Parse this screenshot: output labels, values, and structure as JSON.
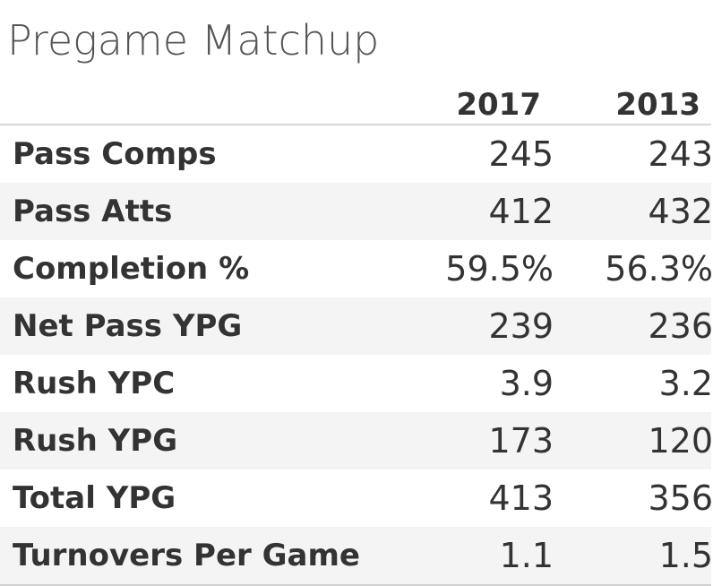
{
  "title": "Pregame Matchup",
  "chart_data": {
    "type": "table",
    "title": "Pregame Matchup",
    "columns": [
      "2017",
      "2013"
    ],
    "rows": [
      {
        "label": "Pass Comps",
        "values": [
          "245",
          "243"
        ]
      },
      {
        "label": "Pass Atts",
        "values": [
          "412",
          "432"
        ]
      },
      {
        "label": "Completion %",
        "values": [
          "59.5%",
          "56.3%"
        ]
      },
      {
        "label": "Net Pass YPG",
        "values": [
          "239",
          "236"
        ]
      },
      {
        "label": "Rush YPC",
        "values": [
          "3.9",
          "3.2"
        ]
      },
      {
        "label": "Rush YPG",
        "values": [
          "173",
          "120"
        ]
      },
      {
        "label": "Total YPG",
        "values": [
          "413",
          "356"
        ]
      },
      {
        "label": "Turnovers Per Game",
        "values": [
          "1.1",
          "1.5"
        ]
      }
    ]
  },
  "colors": {
    "text": "#333333",
    "title": "#555555",
    "row_shade": "#f4f4f4",
    "rule": "#d6d6d6"
  }
}
